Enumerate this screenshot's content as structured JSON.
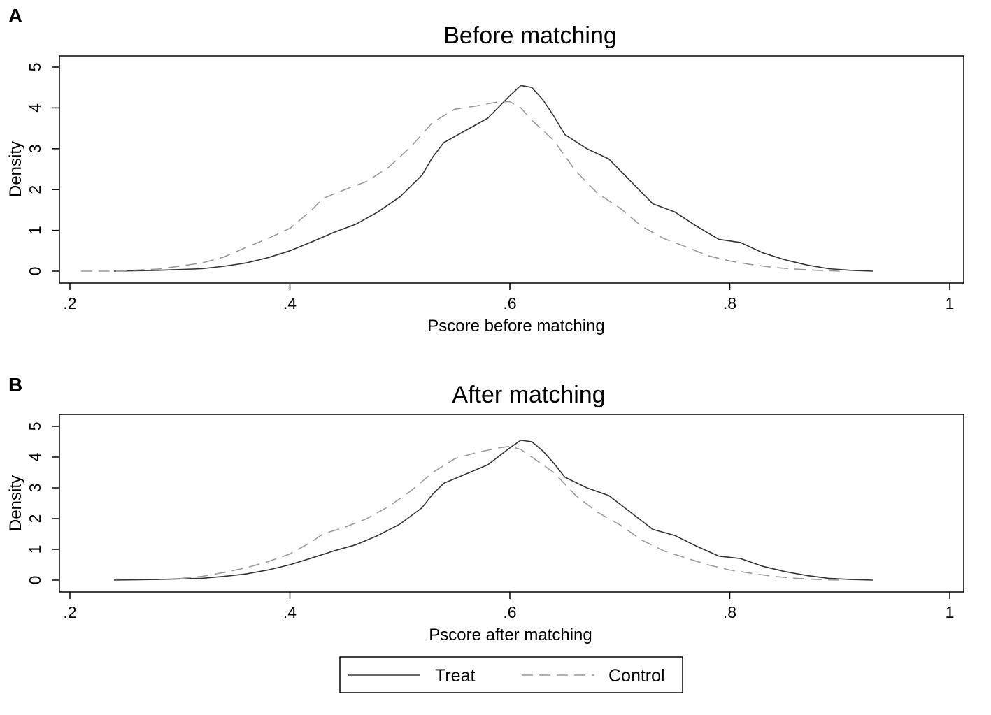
{
  "chart_data": [
    {
      "type": "line",
      "panel_label": "A",
      "title": "Before matching",
      "xlabel": "Pscore before matching",
      "ylabel": "Density",
      "xlim": [
        0.2,
        1.0
      ],
      "ylim": [
        0,
        5
      ],
      "x_ticks": [
        ".2",
        ".4",
        ".6",
        ".8",
        "1"
      ],
      "y_ticks": [
        "0",
        "1",
        "2",
        "3",
        "4",
        "5"
      ],
      "grid": false,
      "series": [
        {
          "name": "Treat",
          "style": "solid",
          "color": "#333333",
          "points": [
            [
              0.24,
              0.0
            ],
            [
              0.28,
              0.02
            ],
            [
              0.32,
              0.06
            ],
            [
              0.34,
              0.12
            ],
            [
              0.36,
              0.2
            ],
            [
              0.38,
              0.33
            ],
            [
              0.4,
              0.5
            ],
            [
              0.42,
              0.72
            ],
            [
              0.44,
              0.95
            ],
            [
              0.46,
              1.15
            ],
            [
              0.48,
              1.45
            ],
            [
              0.5,
              1.82
            ],
            [
              0.52,
              2.35
            ],
            [
              0.53,
              2.8
            ],
            [
              0.54,
              3.15
            ],
            [
              0.56,
              3.45
            ],
            [
              0.58,
              3.75
            ],
            [
              0.6,
              4.3
            ],
            [
              0.61,
              4.55
            ],
            [
              0.62,
              4.5
            ],
            [
              0.63,
              4.2
            ],
            [
              0.64,
              3.8
            ],
            [
              0.65,
              3.35
            ],
            [
              0.67,
              3.0
            ],
            [
              0.69,
              2.75
            ],
            [
              0.71,
              2.2
            ],
            [
              0.73,
              1.65
            ],
            [
              0.75,
              1.45
            ],
            [
              0.77,
              1.1
            ],
            [
              0.79,
              0.78
            ],
            [
              0.81,
              0.7
            ],
            [
              0.83,
              0.45
            ],
            [
              0.85,
              0.28
            ],
            [
              0.87,
              0.15
            ],
            [
              0.89,
              0.06
            ],
            [
              0.91,
              0.02
            ],
            [
              0.93,
              0.0
            ]
          ]
        },
        {
          "name": "Control",
          "style": "dashed",
          "color": "#9a9a9a",
          "points": [
            [
              0.21,
              0.0
            ],
            [
              0.24,
              0.0
            ],
            [
              0.28,
              0.05
            ],
            [
              0.32,
              0.2
            ],
            [
              0.34,
              0.35
            ],
            [
              0.36,
              0.58
            ],
            [
              0.38,
              0.8
            ],
            [
              0.4,
              1.05
            ],
            [
              0.42,
              1.5
            ],
            [
              0.43,
              1.78
            ],
            [
              0.45,
              2.0
            ],
            [
              0.47,
              2.2
            ],
            [
              0.49,
              2.55
            ],
            [
              0.51,
              3.05
            ],
            [
              0.53,
              3.65
            ],
            [
              0.55,
              3.97
            ],
            [
              0.57,
              4.05
            ],
            [
              0.59,
              4.15
            ],
            [
              0.6,
              4.15
            ],
            [
              0.61,
              4.0
            ],
            [
              0.62,
              3.7
            ],
            [
              0.64,
              3.2
            ],
            [
              0.66,
              2.45
            ],
            [
              0.68,
              1.9
            ],
            [
              0.7,
              1.55
            ],
            [
              0.72,
              1.1
            ],
            [
              0.74,
              0.8
            ],
            [
              0.76,
              0.6
            ],
            [
              0.78,
              0.38
            ],
            [
              0.8,
              0.25
            ],
            [
              0.82,
              0.16
            ],
            [
              0.84,
              0.09
            ],
            [
              0.86,
              0.05
            ],
            [
              0.88,
              0.02
            ],
            [
              0.9,
              0.0
            ]
          ]
        }
      ]
    },
    {
      "type": "line",
      "panel_label": "B",
      "title": "After matching",
      "xlabel": "Pscore after matching",
      "ylabel": "Density",
      "xlim": [
        0.2,
        1.0
      ],
      "ylim": [
        0,
        5
      ],
      "x_ticks": [
        ".2",
        ".4",
        ".6",
        ".8",
        "1"
      ],
      "y_ticks": [
        "0",
        "1",
        "2",
        "3",
        "4",
        "5"
      ],
      "grid": false,
      "series": [
        {
          "name": "Treat",
          "style": "solid",
          "color": "#333333",
          "points": [
            [
              0.24,
              0.0
            ],
            [
              0.28,
              0.02
            ],
            [
              0.32,
              0.06
            ],
            [
              0.34,
              0.12
            ],
            [
              0.36,
              0.2
            ],
            [
              0.38,
              0.33
            ],
            [
              0.4,
              0.5
            ],
            [
              0.42,
              0.72
            ],
            [
              0.44,
              0.95
            ],
            [
              0.46,
              1.15
            ],
            [
              0.48,
              1.45
            ],
            [
              0.5,
              1.82
            ],
            [
              0.52,
              2.35
            ],
            [
              0.53,
              2.8
            ],
            [
              0.54,
              3.15
            ],
            [
              0.56,
              3.45
            ],
            [
              0.58,
              3.75
            ],
            [
              0.6,
              4.3
            ],
            [
              0.61,
              4.55
            ],
            [
              0.62,
              4.5
            ],
            [
              0.63,
              4.2
            ],
            [
              0.64,
              3.8
            ],
            [
              0.65,
              3.35
            ],
            [
              0.67,
              3.0
            ],
            [
              0.69,
              2.75
            ],
            [
              0.71,
              2.2
            ],
            [
              0.73,
              1.65
            ],
            [
              0.75,
              1.45
            ],
            [
              0.77,
              1.1
            ],
            [
              0.79,
              0.78
            ],
            [
              0.81,
              0.7
            ],
            [
              0.83,
              0.45
            ],
            [
              0.85,
              0.28
            ],
            [
              0.87,
              0.15
            ],
            [
              0.89,
              0.06
            ],
            [
              0.91,
              0.02
            ],
            [
              0.93,
              0.0
            ]
          ]
        },
        {
          "name": "Control",
          "style": "dashed",
          "color": "#9a9a9a",
          "points": [
            [
              0.3,
              0.05
            ],
            [
              0.32,
              0.12
            ],
            [
              0.34,
              0.25
            ],
            [
              0.36,
              0.4
            ],
            [
              0.38,
              0.6
            ],
            [
              0.4,
              0.85
            ],
            [
              0.42,
              1.25
            ],
            [
              0.43,
              1.5
            ],
            [
              0.45,
              1.72
            ],
            [
              0.47,
              2.0
            ],
            [
              0.49,
              2.4
            ],
            [
              0.51,
              2.9
            ],
            [
              0.53,
              3.5
            ],
            [
              0.55,
              3.95
            ],
            [
              0.57,
              4.15
            ],
            [
              0.59,
              4.3
            ],
            [
              0.6,
              4.35
            ],
            [
              0.61,
              4.25
            ],
            [
              0.62,
              4.0
            ],
            [
              0.64,
              3.5
            ],
            [
              0.66,
              2.75
            ],
            [
              0.68,
              2.2
            ],
            [
              0.7,
              1.8
            ],
            [
              0.72,
              1.3
            ],
            [
              0.74,
              0.95
            ],
            [
              0.76,
              0.72
            ],
            [
              0.78,
              0.5
            ],
            [
              0.8,
              0.33
            ],
            [
              0.82,
              0.22
            ],
            [
              0.84,
              0.12
            ],
            [
              0.86,
              0.06
            ],
            [
              0.88,
              0.02
            ],
            [
              0.9,
              0.0
            ]
          ]
        }
      ]
    }
  ],
  "legend": {
    "placement": "bottom-center",
    "items": [
      {
        "name": "Treat",
        "style": "solid"
      },
      {
        "name": "Control",
        "style": "dashed"
      }
    ]
  }
}
